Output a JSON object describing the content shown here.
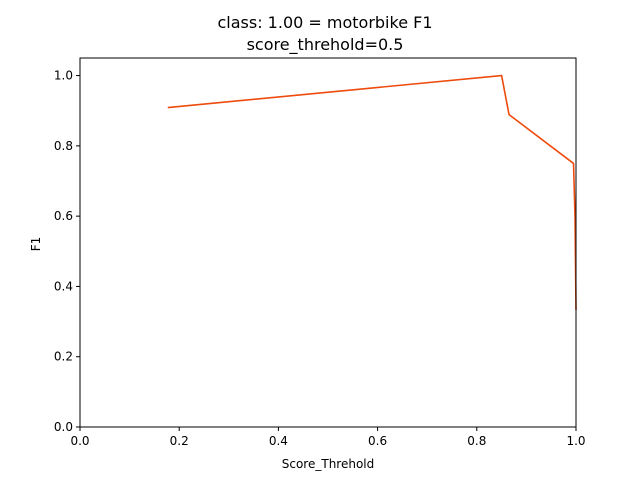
{
  "chart_data": {
    "type": "line",
    "title_line1": "class: 1.00 = motorbike F1",
    "title_line2": "score_threhold=0.5",
    "xlabel": "Score_Threhold",
    "ylabel": "F1",
    "xlim": [
      0.0,
      1.0
    ],
    "ylim": [
      0.0,
      1.05
    ],
    "xticks": [
      0.0,
      0.2,
      0.4,
      0.6,
      0.8,
      1.0
    ],
    "xtick_labels": [
      "0.0",
      "0.2",
      "0.4",
      "0.6",
      "0.8",
      "1.0"
    ],
    "yticks": [
      0.0,
      0.2,
      0.4,
      0.6,
      0.8,
      1.0
    ],
    "ytick_labels": [
      "0.0",
      "0.2",
      "0.4",
      "0.6",
      "0.8",
      "1.0"
    ],
    "grid": false,
    "series": [
      {
        "color": "#ee4b0e",
        "x": [
          0.177,
          0.85,
          0.865,
          0.995,
          0.998,
          1.0
        ],
        "y": [
          0.909,
          1.0,
          0.889,
          0.75,
          0.6,
          0.333
        ]
      }
    ]
  }
}
